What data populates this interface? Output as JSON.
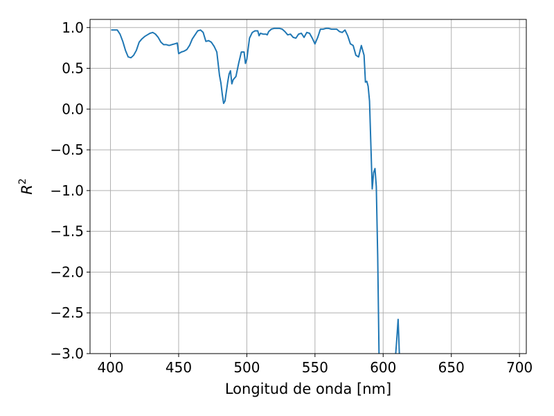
{
  "chart_data": {
    "type": "line",
    "xlabel": "Longitud de onda [nm]",
    "ylabel_base": "R",
    "ylabel_sup": "2",
    "xlim": [
      385,
      705
    ],
    "ylim": [
      -3.0,
      1.1
    ],
    "grid": true,
    "x_ticks": [
      400,
      450,
      500,
      550,
      600,
      650,
      700
    ],
    "x_tick_labels": [
      "400",
      "450",
      "500",
      "550",
      "600",
      "650",
      "700"
    ],
    "y_ticks": [
      1.0,
      0.5,
      0.0,
      -0.5,
      -1.0,
      -1.5,
      -2.0,
      -2.5,
      -3.0
    ],
    "y_tick_labels": [
      "1.0",
      "0.5",
      "0.0",
      "−0.5",
      "−1.0",
      "−1.5",
      "−2.0",
      "−2.5",
      "−3.0"
    ],
    "colors": {
      "series": "#1f77b4"
    },
    "series": [
      {
        "x": [
          401,
          403,
          405,
          407,
          409,
          411,
          413,
          415,
          417,
          419,
          421,
          423,
          425,
          427,
          429,
          431,
          433,
          435,
          437,
          439,
          441,
          443,
          445,
          447,
          449,
          450,
          452,
          454,
          456,
          458,
          460,
          462,
          464,
          466,
          468,
          470,
          472,
          474,
          476,
          478,
          480,
          481,
          482,
          483,
          484,
          486,
          487,
          488,
          489,
          490,
          492,
          494,
          496,
          498,
          499,
          500,
          502,
          504,
          506,
          508,
          509,
          510,
          512,
          514,
          515,
          516,
          518,
          520,
          522,
          524,
          526,
          528,
          530,
          532,
          534,
          536,
          538,
          540,
          542,
          544,
          546,
          548,
          550,
          552,
          554,
          556,
          558,
          560,
          562,
          564,
          566,
          568,
          570,
          572,
          574,
          576,
          578,
          580,
          582,
          584,
          586,
          587,
          588,
          589,
          590,
          592,
          593,
          594,
          595,
          596,
          597,
          598,
          599,
          600,
          601,
          602,
          603
        ],
        "y": [
          0.97,
          0.97,
          0.97,
          0.92,
          0.83,
          0.72,
          0.64,
          0.63,
          0.66,
          0.72,
          0.82,
          0.86,
          0.89,
          0.91,
          0.93,
          0.94,
          0.92,
          0.88,
          0.82,
          0.79,
          0.79,
          0.78,
          0.79,
          0.8,
          0.81,
          0.68,
          0.7,
          0.71,
          0.73,
          0.78,
          0.86,
          0.91,
          0.96,
          0.97,
          0.94,
          0.83,
          0.84,
          0.82,
          0.77,
          0.7,
          0.41,
          0.32,
          0.18,
          0.07,
          0.1,
          0.33,
          0.43,
          0.47,
          0.31,
          0.36,
          0.4,
          0.56,
          0.7,
          0.7,
          0.56,
          0.61,
          0.87,
          0.94,
          0.96,
          0.96,
          0.9,
          0.93,
          0.92,
          0.92,
          0.91,
          0.95,
          0.98,
          0.99,
          0.99,
          0.99,
          0.98,
          0.95,
          0.91,
          0.92,
          0.88,
          0.87,
          0.92,
          0.93,
          0.88,
          0.94,
          0.93,
          0.87,
          0.8,
          0.88,
          0.98,
          0.98,
          0.99,
          0.99,
          0.98,
          0.98,
          0.98,
          0.95,
          0.94,
          0.97,
          0.9,
          0.8,
          0.78,
          0.66,
          0.64,
          0.78,
          0.66,
          0.33,
          0.34,
          0.28,
          0.1,
          -0.98,
          -0.78,
          -0.73,
          -0.95,
          -1.8,
          -3.05,
          -3.05,
          -3.05,
          -3.05,
          -3.05,
          -3.05,
          -3.05
        ]
      },
      {
        "x": [
          609,
          610,
          611,
          612
        ],
        "y": [
          -3.05,
          -2.82,
          -2.58,
          -3.05
        ]
      }
    ]
  }
}
